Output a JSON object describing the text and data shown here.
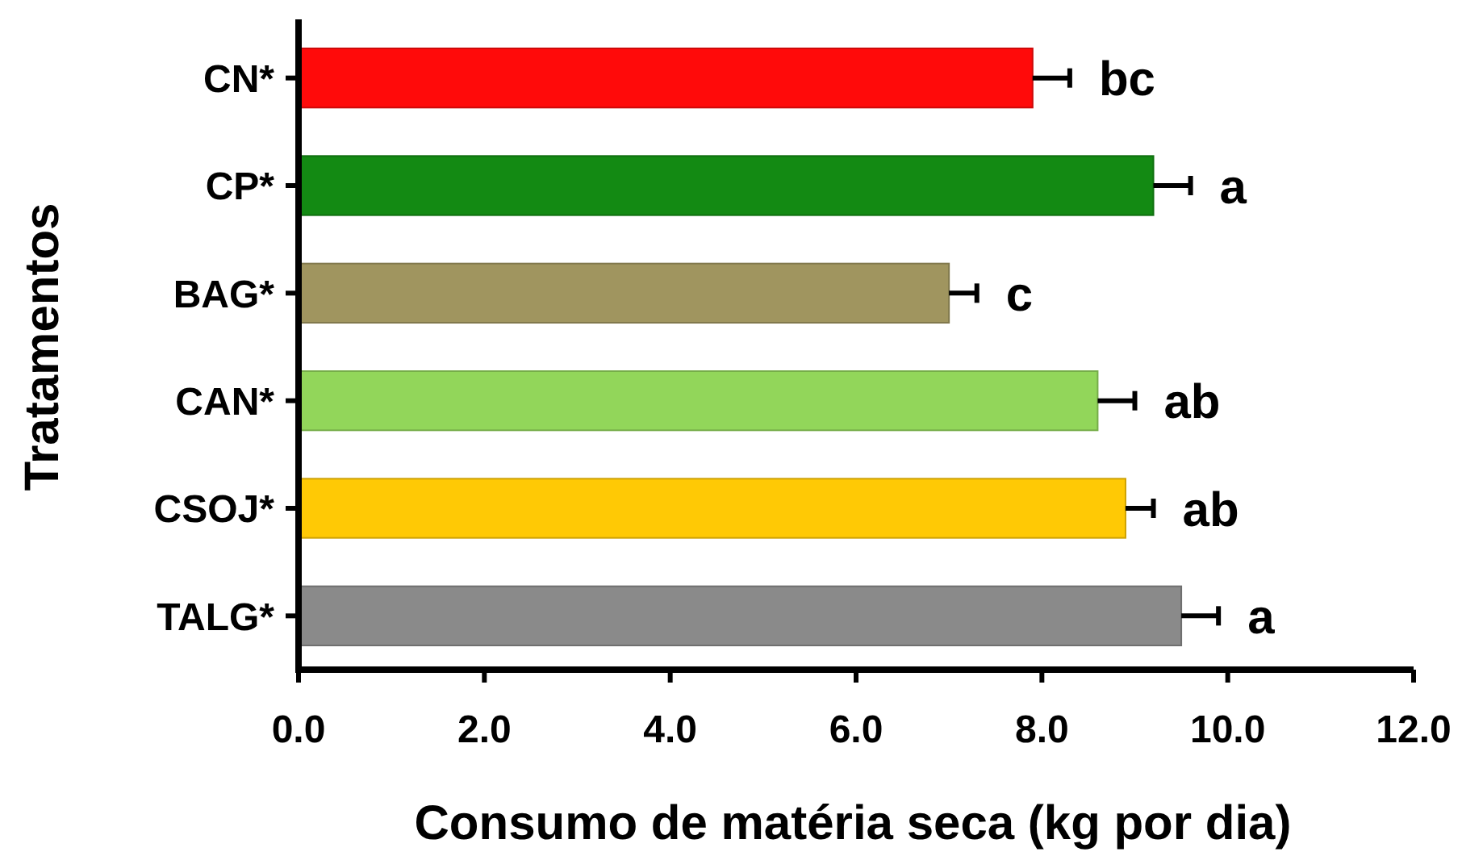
{
  "chart_data": {
    "type": "bar",
    "orientation": "horizontal",
    "xlabel": "Consumo de matéria seca (kg por dia)",
    "ylabel": "Tratamentos",
    "categories": [
      "CN*",
      "CP*",
      "BAG*",
      "CAN*",
      "CSOJ*",
      "TALG*"
    ],
    "values": [
      7.9,
      9.2,
      7.0,
      8.6,
      8.9,
      9.5
    ],
    "colors": [
      "#ff0a0a",
      "#138a13",
      "#a0955f",
      "#92d65a",
      "#ffc905",
      "#8a8a8a"
    ],
    "errors": [
      0.4,
      0.4,
      0.3,
      0.4,
      0.3,
      0.4
    ],
    "value_labels": [
      "bc",
      "a",
      "c",
      "ab",
      "ab",
      "a"
    ],
    "xlim": [
      0,
      12
    ],
    "xticks": [
      {
        "value": 0,
        "label": "0.0"
      },
      {
        "value": 2,
        "label": "2.0"
      },
      {
        "value": 4,
        "label": "4.0"
      },
      {
        "value": 6,
        "label": "6.0"
      },
      {
        "value": 8,
        "label": "8.0"
      },
      {
        "value": 10,
        "label": "10.0"
      },
      {
        "value": 12,
        "label": "12.0"
      }
    ]
  }
}
